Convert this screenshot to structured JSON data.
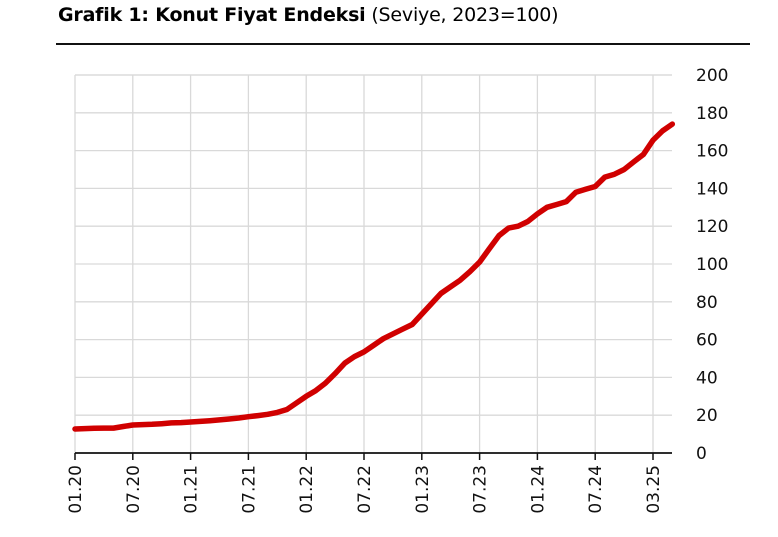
{
  "title": {
    "main": "Grafik 1: Konut Fiyat Endeksi",
    "sub": " (Seviye, 2023=100)"
  },
  "chart_data": {
    "type": "line",
    "title": "Grafik 1: Konut Fiyat Endeksi",
    "subtitle": "(Seviye, 2023=100)",
    "xlabel": "",
    "ylabel": "",
    "ylim": [
      0,
      200
    ],
    "yticks": [
      0,
      20,
      40,
      60,
      80,
      100,
      120,
      140,
      160,
      180,
      200
    ],
    "xtick_labels": [
      "01.20",
      "07.20",
      "01.21",
      "07.21",
      "01.22",
      "07.22",
      "01.23",
      "07.23",
      "01.24",
      "07.24",
      "03.25"
    ],
    "grid": true,
    "y_axis_position": "right",
    "color": "#d00000",
    "series": [
      {
        "name": "Konut Fiyat Endeksi",
        "x": [
          "01.20",
          "02.20",
          "03.20",
          "04.20",
          "05.20",
          "06.20",
          "07.20",
          "08.20",
          "09.20",
          "10.20",
          "11.20",
          "12.20",
          "01.21",
          "02.21",
          "03.21",
          "04.21",
          "05.21",
          "06.21",
          "07.21",
          "08.21",
          "09.21",
          "10.21",
          "11.21",
          "12.21",
          "01.22",
          "02.22",
          "03.22",
          "04.22",
          "05.22",
          "06.22",
          "07.22",
          "08.22",
          "09.22",
          "10.22",
          "11.22",
          "12.22",
          "01.23",
          "02.23",
          "03.23",
          "04.23",
          "05.23",
          "06.23",
          "07.23",
          "08.23",
          "09.23",
          "10.23",
          "11.23",
          "12.23",
          "01.24",
          "02.24",
          "03.24",
          "04.24",
          "05.24",
          "06.24",
          "07.24",
          "08.24",
          "09.24",
          "10.24",
          "11.24",
          "12.24",
          "01.25",
          "02.25",
          "03.25"
        ],
        "values": [
          12.7,
          12.9,
          13.1,
          13.2,
          13.2,
          14.0,
          14.8,
          15.0,
          15.2,
          15.5,
          15.9,
          16.1,
          16.4,
          16.7,
          17.1,
          17.5,
          18.0,
          18.5,
          19.2,
          19.8,
          20.5,
          21.5,
          23.0,
          26.5,
          30.0,
          33.0,
          37.0,
          42.0,
          47.5,
          51.0,
          53.5,
          57.0,
          60.5,
          63.0,
          65.5,
          68.0,
          73.5,
          79.0,
          84.5,
          88.0,
          91.5,
          96.0,
          101.0,
          108.0,
          115.0,
          119.0,
          120.0,
          122.5,
          126.5,
          130.0,
          131.5,
          133.0,
          138.0,
          139.5,
          141.0,
          146.0,
          147.5,
          150.0,
          154.0,
          158.0,
          165.5,
          170.5,
          174.0
        ]
      }
    ]
  }
}
